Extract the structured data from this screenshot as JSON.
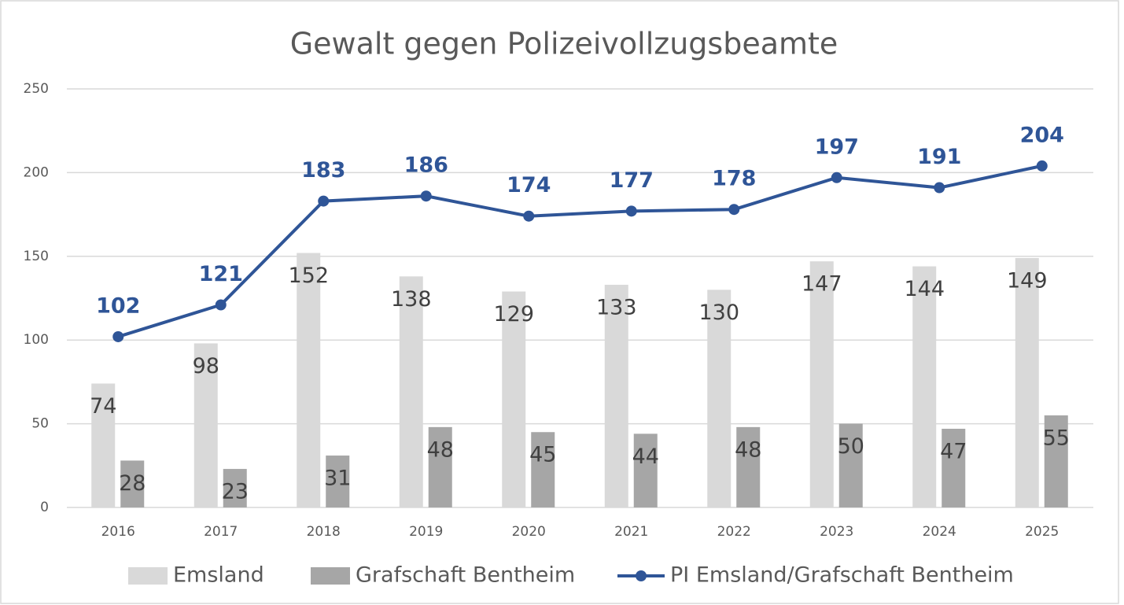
{
  "chart_data": {
    "type": "bar",
    "title": "Gewalt gegen Polizeivollzugsbeamte",
    "categories": [
      "2016",
      "2017",
      "2018",
      "2019",
      "2020",
      "2021",
      "2022",
      "2023",
      "2024",
      "2025"
    ],
    "series": [
      {
        "name": "Emsland",
        "type": "bar",
        "color": "#d9d9d9",
        "values": [
          74,
          98,
          152,
          138,
          129,
          133,
          130,
          147,
          144,
          149
        ]
      },
      {
        "name": "Grafschaft Bentheim",
        "type": "bar",
        "color": "#a6a6a6",
        "values": [
          28,
          23,
          31,
          48,
          45,
          44,
          48,
          50,
          47,
          55
        ]
      },
      {
        "name": "PI Emsland/Grafschaft Bentheim",
        "type": "line",
        "color": "#2f5597",
        "values": [
          102,
          121,
          183,
          186,
          174,
          177,
          178,
          197,
          191,
          204
        ]
      }
    ],
    "ylim": [
      0,
      250
    ],
    "yticks": [
      0,
      50,
      100,
      150,
      200,
      250
    ],
    "grid": true,
    "legend": "bottom"
  }
}
